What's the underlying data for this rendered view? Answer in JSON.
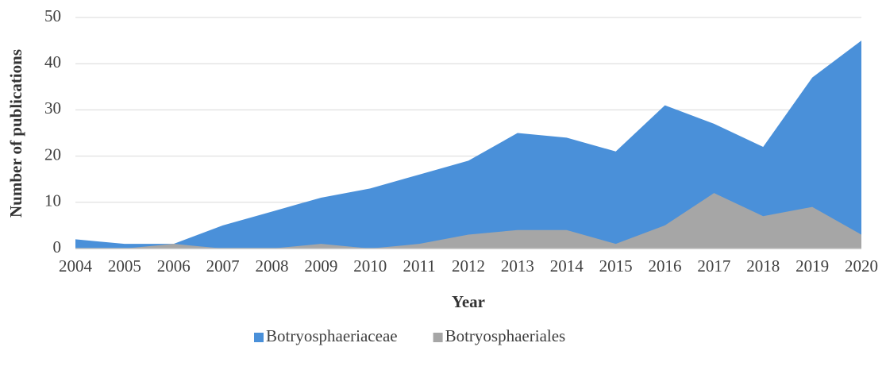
{
  "chart_data": {
    "type": "area",
    "categories": [
      "2004",
      "2005",
      "2006",
      "2007",
      "2008",
      "2009",
      "2010",
      "2011",
      "2012",
      "2013",
      "2014",
      "2015",
      "2016",
      "2017",
      "2018",
      "2019",
      "2020"
    ],
    "series": [
      {
        "name": "Botryosphaeriaceae",
        "color": "#4a90d9",
        "values": [
          2,
          1,
          1,
          5,
          8,
          11,
          13,
          16,
          19,
          25,
          24,
          21,
          31,
          27,
          22,
          37,
          45
        ]
      },
      {
        "name": "Botryosphaeriales",
        "color": "#a6a6a6",
        "values": [
          0,
          0,
          1,
          0,
          0,
          1,
          0,
          1,
          3,
          4,
          4,
          1,
          5,
          12,
          7,
          9,
          3
        ]
      }
    ],
    "xlabel": "Year",
    "ylabel": "Number of publications",
    "ylim": [
      0,
      50
    ],
    "yticks": [
      0,
      10,
      20,
      30,
      40,
      50
    ],
    "grid": true,
    "legend": "bottom"
  }
}
